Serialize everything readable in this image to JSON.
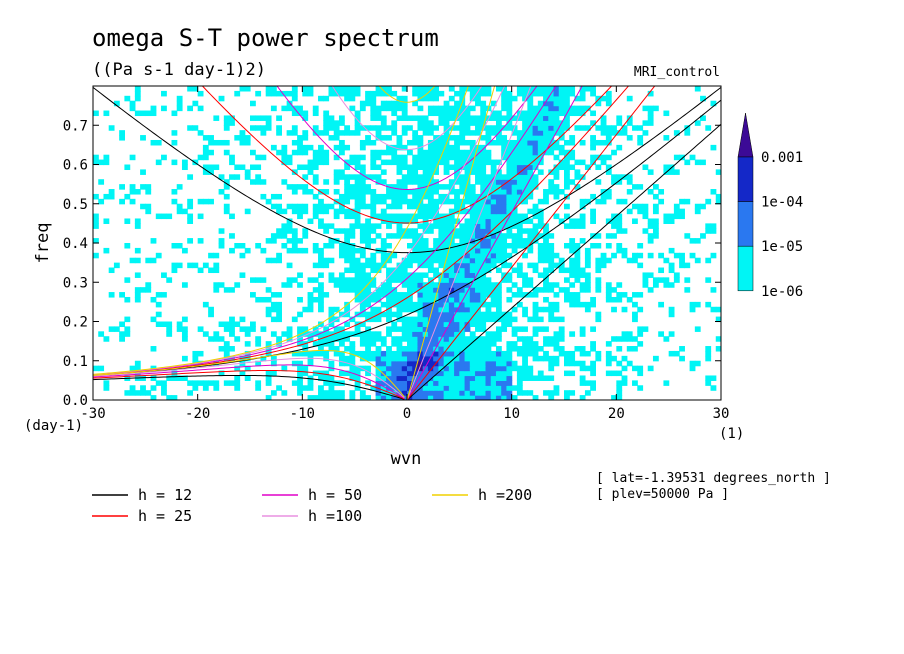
{
  "chart_data": {
    "type": "heatmap",
    "title": "omega S-T power spectrum",
    "subtitle": "((Pa s-1 day-1)2)",
    "run_label": "MRI_control",
    "xlabel": "wvn",
    "ylabel": "freq",
    "x_unit_label": "(1)",
    "y_unit_label": "(day-1)",
    "xlim": [
      -30,
      30
    ],
    "ylim": [
      0,
      0.8
    ],
    "xticks": [
      -30,
      -20,
      -10,
      0,
      10,
      20,
      30
    ],
    "xtick_labels": [
      "-30",
      "-20",
      "-10",
      "0",
      "10",
      "20",
      "30"
    ],
    "yticks": [
      0.0,
      0.1,
      0.2,
      0.3,
      0.4,
      0.5,
      0.6,
      0.7
    ],
    "ytick_labels": [
      "0.0",
      "0.1",
      "0.2",
      "0.3",
      "0.4",
      "0.5",
      "0.6",
      "0.7"
    ],
    "colorbar": {
      "levels": [
        "1e-06",
        "1e-05",
        "1e-04",
        "0.001"
      ],
      "colors": [
        "#00f5f5",
        "#2a78f0",
        "#1428c8",
        "#3c0a96"
      ]
    },
    "dispersion_curves": [
      {
        "name": "h = 12",
        "h": 12,
        "color": "#000000"
      },
      {
        "name": "h = 25",
        "h": 25,
        "color": "#ff0000"
      },
      {
        "name": "h = 50",
        "h": 50,
        "color": "#e000c8"
      },
      {
        "name": "h =100",
        "h": 100,
        "color": "#e890e0"
      },
      {
        "name": "h =200",
        "h": 200,
        "color": "#f0d000"
      }
    ],
    "annotations": [
      "[ lat=-1.39531 degrees_north ]",
      "[ plev=50000 Pa ]"
    ]
  }
}
